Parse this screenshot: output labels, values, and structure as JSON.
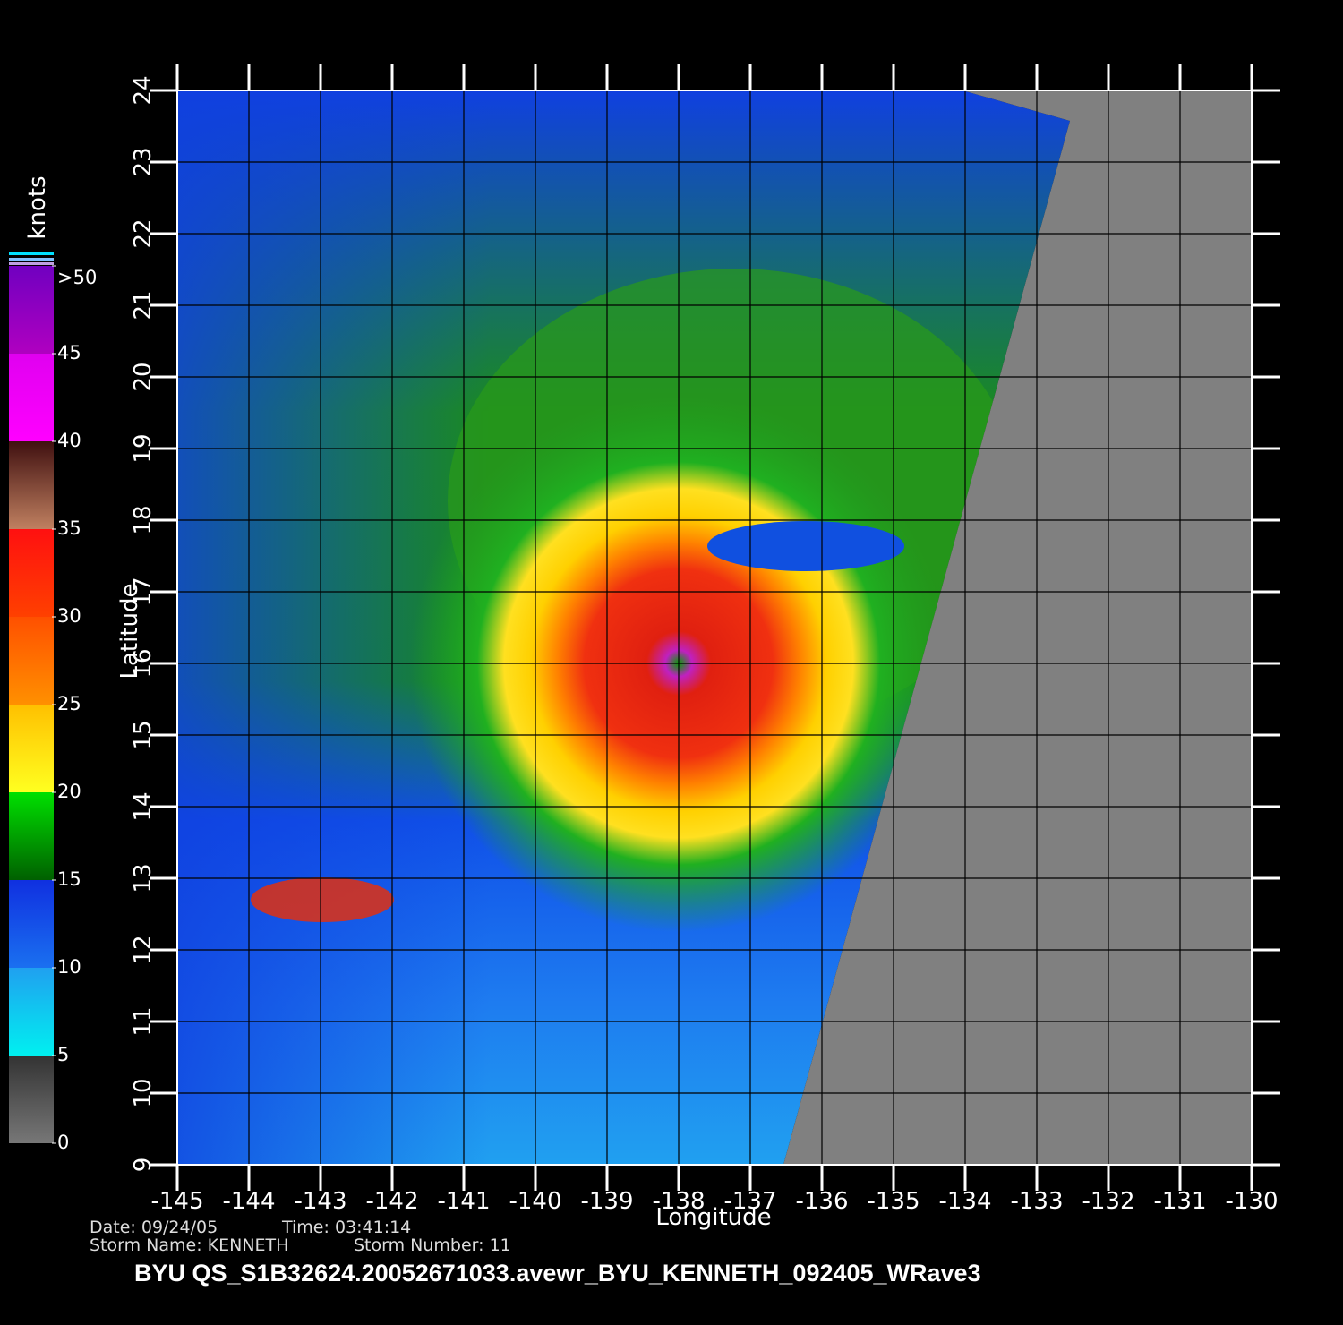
{
  "map": {
    "xlabel": "Longitude",
    "ylabel": "Latitude",
    "xlim": [
      -145,
      -130
    ],
    "ylim": [
      9,
      24
    ],
    "xticks": [
      -145,
      -144,
      -143,
      -142,
      -141,
      -140,
      -139,
      -138,
      -137,
      -136,
      -135,
      -134,
      -133,
      -132,
      -131,
      -130
    ],
    "yticks": [
      9,
      10,
      11,
      12,
      13,
      14,
      15,
      16,
      17,
      18,
      19,
      20,
      21,
      22,
      23,
      24
    ],
    "storm_center": [
      -138,
      16
    ]
  },
  "colorbar": {
    "unit": "knots",
    "lim": [
      0,
      50
    ],
    "ticks": [
      0,
      5,
      10,
      15,
      20,
      25,
      30,
      35,
      40,
      45,
      {
        "value": 50,
        "label": ">50"
      }
    ]
  },
  "footer": {
    "date": "Date: 09/24/05",
    "time": "Time: 03:41:14",
    "storm_name": "Storm Name: KENNETH",
    "storm_number": "Storm Number: 11",
    "title": "BYU  QS_S1B32624.20052671033.avewr_BYU_KENNETH_092405_WRave3"
  }
}
